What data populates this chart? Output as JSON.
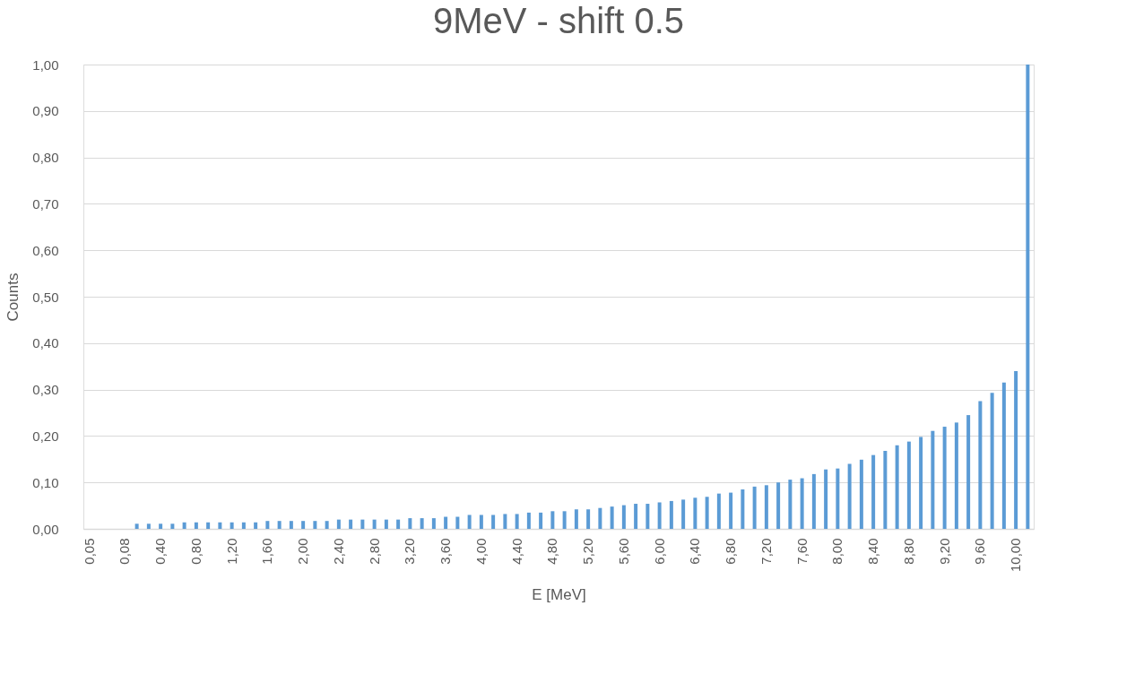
{
  "chart_data": {
    "type": "bar",
    "title": "9MeV - shift 0.5",
    "xlabel": "E [MeV]",
    "ylabel": "Counts",
    "categories": [
      "0,05",
      null,
      null,
      "0,08",
      null,
      null,
      "0,40",
      null,
      null,
      "0,80",
      null,
      null,
      "1,20",
      null,
      null,
      "1,60",
      null,
      null,
      "2,00",
      null,
      null,
      "2,40",
      null,
      null,
      "2,80",
      null,
      null,
      "3,20",
      null,
      null,
      "3,60",
      null,
      null,
      "4,00",
      null,
      null,
      "4,40",
      null,
      null,
      "4,80",
      null,
      null,
      "5,20",
      null,
      null,
      "5,60",
      null,
      null,
      "6,00",
      null,
      null,
      "6,40",
      null,
      null,
      "6,80",
      null,
      null,
      "7,20",
      null,
      null,
      "7,60",
      null,
      null,
      "8,00",
      null,
      null,
      "8,40",
      null,
      null,
      "8,80",
      null,
      null,
      "9,20",
      null,
      null,
      "9,60",
      null,
      null,
      "10,00",
      null
    ],
    "series": [
      {
        "color": "#5b9bd5",
        "values": [
          null,
          null,
          null,
          null,
          0.011,
          0.011,
          0.011,
          0.011,
          0.014,
          0.014,
          0.014,
          0.014,
          0.014,
          0.014,
          0.014,
          0.017,
          0.017,
          0.017,
          0.017,
          0.017,
          0.017,
          0.02,
          0.02,
          0.02,
          0.02,
          0.02,
          0.02,
          0.023,
          0.023,
          0.023,
          0.026,
          0.026,
          0.03,
          0.03,
          0.03,
          0.032,
          0.032,
          0.035,
          0.035,
          0.038,
          0.038,
          0.042,
          0.042,
          0.045,
          0.048,
          0.051,
          0.054,
          0.054,
          0.057,
          0.06,
          0.063,
          0.067,
          0.069,
          0.076,
          0.078,
          0.085,
          0.091,
          0.094,
          0.1,
          0.106,
          0.109,
          0.118,
          0.128,
          0.13,
          0.14,
          0.149,
          0.159,
          0.168,
          0.18,
          0.188,
          0.198,
          0.211,
          0.22,
          0.229,
          0.245,
          0.275,
          0.293,
          0.315,
          0.34,
          1.0
        ]
      }
    ],
    "ylim": [
      0,
      1
    ],
    "yticks": [
      {
        "value": 0,
        "label": "0,00"
      },
      {
        "value": 0.1,
        "label": "0,10"
      },
      {
        "value": 0.2,
        "label": "0,20"
      },
      {
        "value": 0.3,
        "label": "0,30"
      },
      {
        "value": 0.4,
        "label": "0,40"
      },
      {
        "value": 0.5,
        "label": "0,50"
      },
      {
        "value": 0.6,
        "label": "0,60"
      },
      {
        "value": 0.7,
        "label": "0,70"
      },
      {
        "value": 0.8,
        "label": "0,80"
      },
      {
        "value": 0.9,
        "label": "0,90"
      },
      {
        "value": 1,
        "label": "1,00"
      }
    ],
    "grid": "y",
    "legend": false
  }
}
